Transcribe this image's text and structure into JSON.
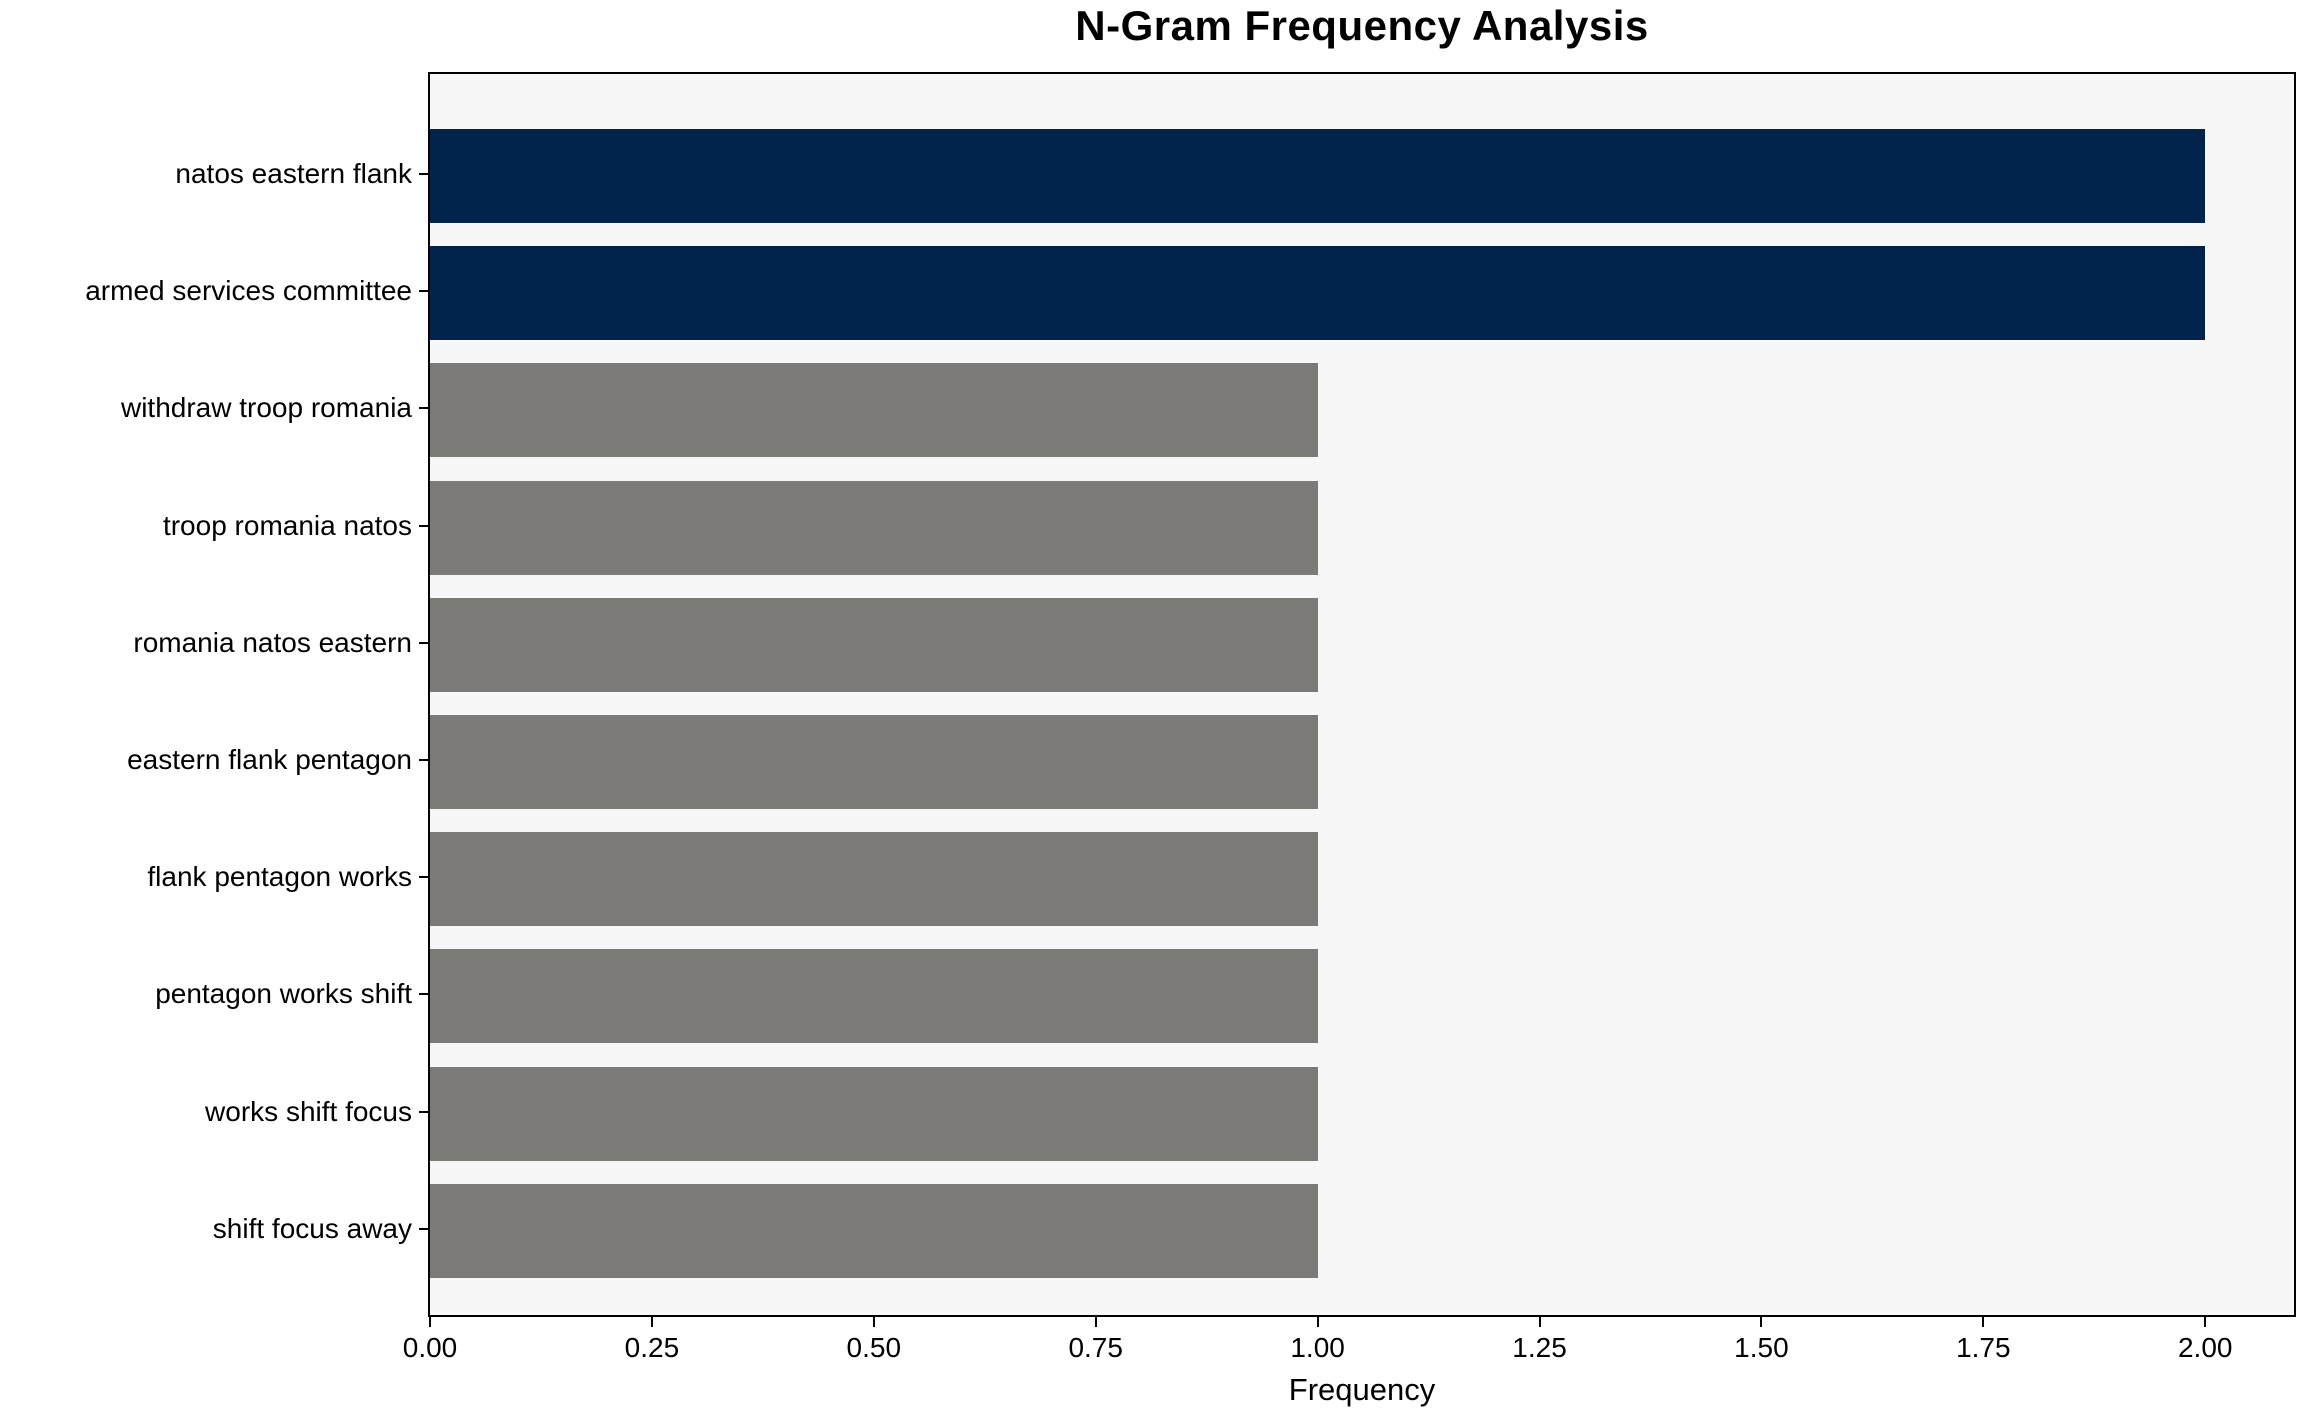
{
  "title": "N-Gram Frequency Analysis",
  "chart_data": {
    "type": "bar",
    "orientation": "horizontal",
    "title": "N-Gram Frequency Analysis",
    "xlabel": "Frequency",
    "ylabel": "",
    "categories": [
      "natos eastern flank",
      "armed services committee",
      "withdraw troop romania",
      "troop romania natos",
      "romania natos eastern",
      "eastern flank pentagon",
      "flank pentagon works",
      "pentagon works shift",
      "works shift focus",
      "shift focus away"
    ],
    "values": [
      2,
      2,
      1,
      1,
      1,
      1,
      1,
      1,
      1,
      1
    ],
    "xlim": [
      0,
      2.1
    ],
    "xticks": [
      0.0,
      0.25,
      0.5,
      0.75,
      1.0,
      1.25,
      1.5,
      1.75,
      2.0
    ],
    "xtick_labels": [
      "0.00",
      "0.25",
      "0.50",
      "0.75",
      "1.00",
      "1.25",
      "1.50",
      "1.75",
      "2.00"
    ],
    "grid": false,
    "legend": null,
    "highlight_min_value": 2,
    "colors": {
      "bar_highlight": "#02234C",
      "bar_default": "#7B7A77",
      "plot_background": "#F7F7F7",
      "spine": "#000000",
      "text": "#000000",
      "figure_background": "#FFFFFF"
    }
  }
}
